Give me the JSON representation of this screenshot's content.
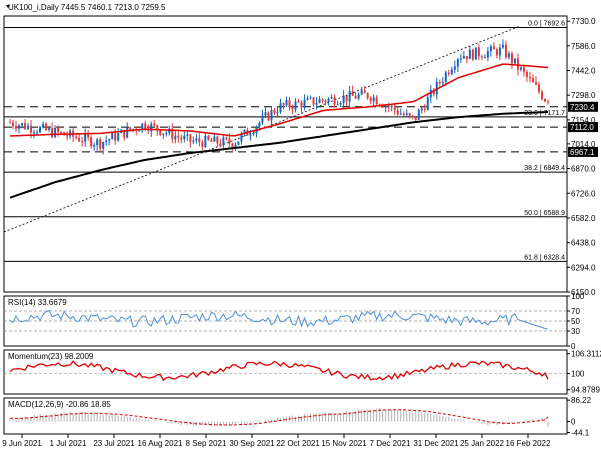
{
  "window": {
    "symbol_line": "UK100_i,Daily  7445.5 7460.1 7213.0 7259.5"
  },
  "price_axis": {
    "ticks": [
      "7730.0",
      "7586.0",
      "7442.0",
      "7298.0",
      "7154.0",
      "7014.0",
      "6870.0",
      "6726.0",
      "6582.0",
      "6438.0",
      "6294.0",
      "6150.0"
    ]
  },
  "price_levels": {
    "hlines_dashed": [
      7230.4,
      7112.0,
      6967.1
    ],
    "hlines_solid": [
      7692.6,
      7171.7,
      6849.4,
      6588.9,
      6328.4
    ],
    "tags": [
      {
        "text": "7230.4",
        "value": 7230.4
      },
      {
        "text": "7112.0",
        "value": 7112.0
      },
      {
        "text": "6967.1",
        "value": 6967.1
      }
    ]
  },
  "fibonacci": [
    {
      "text": "0.0 | 7692.6",
      "value": 7692.6
    },
    {
      "text": "23.6 | 7171.7",
      "value": 7171.7
    },
    {
      "text": "38.2 | 6849.4",
      "value": 6849.4
    },
    {
      "text": "50.0 | 6588.9",
      "value": 6588.9
    },
    {
      "text": "61.8 | 6328.4",
      "value": 6328.4
    }
  ],
  "rsi": {
    "header": "RSI(14) 33.6679",
    "ticks": [
      "100",
      "70",
      "50",
      "30",
      "0"
    ]
  },
  "momentum": {
    "header": "Momentum(23) 98.2009",
    "ticks": [
      "106.3112",
      "100",
      "94.8789"
    ]
  },
  "macd": {
    "header": "MACD(12,26,9) -20.86 18.85",
    "ticks": [
      "86.22",
      "0",
      "-44.1"
    ]
  },
  "x_axis": {
    "ticks": [
      "9 Jun 2021",
      "1 Jul 2021",
      "23 Jul 2021",
      "16 Aug 2021",
      "8 Sep 2021",
      "30 Sep 2021",
      "22 Oct 2021",
      "15 Nov 2021",
      "7 Dec 2021",
      "31 Dec 2021",
      "25 Jan 2022",
      "16 Feb 2022"
    ]
  },
  "colors": {
    "up_candle": "#1565c0",
    "down_candle": "#e53935",
    "ema50": "#e00000",
    "ema200": "#000000",
    "rsi_line": "#4a90d9",
    "momentum_line": "#e00000",
    "macd_hist": "#b0b0b0",
    "macd_signal": "#e00000"
  },
  "chart_data": {
    "type": "line",
    "title": "UK100_i,Daily",
    "ohlc_last": {
      "open": 7445.5,
      "high": 7460.1,
      "low": 7213.0,
      "close": 7259.5
    },
    "price_range": [
      6150,
      7760
    ],
    "dates": [
      "9 Jun 2021",
      "1 Jul 2021",
      "23 Jul 2021",
      "16 Aug 2021",
      "8 Sep 2021",
      "30 Sep 2021",
      "22 Oct 2021",
      "15 Nov 2021",
      "7 Dec 2021",
      "31 Dec 2021",
      "25 Jan 2022",
      "16 Feb 2022",
      "24 Feb 2022"
    ],
    "series": [
      {
        "name": "Close",
        "values": [
          7140,
          7080,
          7020,
          7130,
          7030,
          7020,
          7230,
          7270,
          7300,
          7150,
          7530,
          7560,
          7259.5
        ]
      },
      {
        "name": "EMA50",
        "values": [
          7060,
          7070,
          7075,
          7100,
          7090,
          7060,
          7130,
          7210,
          7230,
          7260,
          7400,
          7480,
          7460
        ]
      },
      {
        "name": "EMA200",
        "values": [
          6700,
          6790,
          6860,
          6920,
          6960,
          6990,
          7020,
          7060,
          7100,
          7140,
          7170,
          7190,
          7200
        ]
      }
    ],
    "indicators": {
      "rsi14_last": 33.6679,
      "momentum23_last": 98.2009,
      "macd_last": -20.86,
      "macd_signal_last": 18.85
    }
  }
}
